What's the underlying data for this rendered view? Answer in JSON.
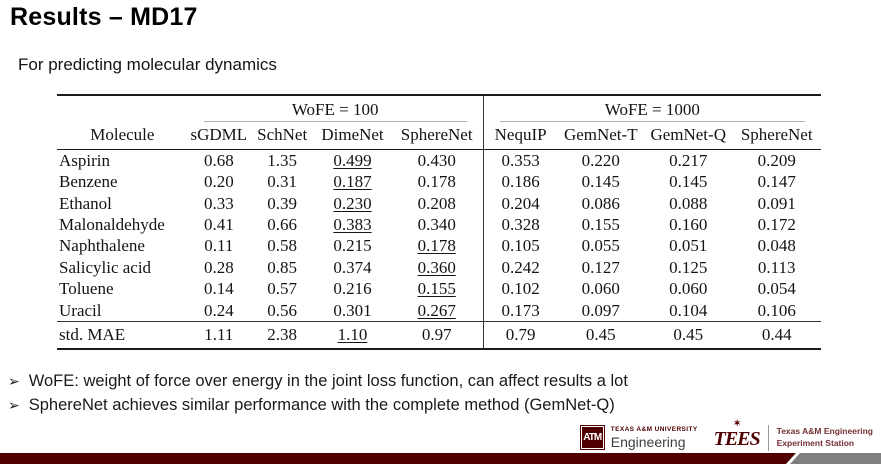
{
  "slide": {
    "title": "Results – MD17",
    "subtitle": "For predicting molecular dynamics"
  },
  "icons": {
    "bullet_arrow": "➢",
    "tees_star": "✶"
  },
  "colors": {
    "tamu_maroon": "#500000",
    "footer_bar_gray": "#7f7f7f",
    "table_rule_dark": "#1c1c1c",
    "cmidrule_gray": "#b0b0b0"
  },
  "table": {
    "corner_label": "Molecule",
    "groups": [
      {
        "label": "WoFE = 100",
        "columns": [
          {
            "label": "sGDML",
            "bold": false
          },
          {
            "label": "SchNet",
            "bold": false
          },
          {
            "label": "DimeNet",
            "bold": false
          },
          {
            "label": "SphereNet",
            "bold": true
          }
        ]
      },
      {
        "label": "WoFE = 1000",
        "columns": [
          {
            "label": "NequIP",
            "bold": false
          },
          {
            "label": "GemNet-T",
            "bold": false
          },
          {
            "label": "GemNet-Q",
            "bold": false
          },
          {
            "label": "SphereNet",
            "bold": false
          }
        ]
      }
    ],
    "rows": [
      {
        "molecule": "Aspirin",
        "cells": [
          {
            "v": "0.68"
          },
          {
            "v": "1.35"
          },
          {
            "v": "0.499",
            "style": "underline"
          },
          {
            "v": "0.430",
            "style": "bold"
          },
          {
            "v": "0.353"
          },
          {
            "v": "0.220"
          },
          {
            "v": "0.217"
          },
          {
            "v": "0.209"
          }
        ]
      },
      {
        "molecule": "Benzene",
        "cells": [
          {
            "v": "0.20"
          },
          {
            "v": "0.31"
          },
          {
            "v": "0.187",
            "style": "underline"
          },
          {
            "v": "0.178",
            "style": "bold"
          },
          {
            "v": "0.186"
          },
          {
            "v": "0.145"
          },
          {
            "v": "0.145"
          },
          {
            "v": "0.147"
          }
        ]
      },
      {
        "molecule": "Ethanol",
        "cells": [
          {
            "v": "0.33"
          },
          {
            "v": "0.39"
          },
          {
            "v": "0.230",
            "style": "underline"
          },
          {
            "v": "0.208",
            "style": "bold"
          },
          {
            "v": "0.204"
          },
          {
            "v": "0.086"
          },
          {
            "v": "0.088"
          },
          {
            "v": "0.091"
          }
        ]
      },
      {
        "molecule": "Malonaldehyde",
        "cells": [
          {
            "v": "0.41"
          },
          {
            "v": "0.66"
          },
          {
            "v": "0.383",
            "style": "underline"
          },
          {
            "v": "0.340",
            "style": "bold"
          },
          {
            "v": "0.328"
          },
          {
            "v": "0.155"
          },
          {
            "v": "0.160"
          },
          {
            "v": "0.172"
          }
        ]
      },
      {
        "molecule": "Naphthalene",
        "cells": [
          {
            "v": "0.11",
            "style": "bold"
          },
          {
            "v": "0.58"
          },
          {
            "v": "0.215"
          },
          {
            "v": "0.178",
            "style": "underline"
          },
          {
            "v": "0.105"
          },
          {
            "v": "0.055"
          },
          {
            "v": "0.051"
          },
          {
            "v": "0.048"
          }
        ]
      },
      {
        "molecule": "Salicylic acid",
        "cells": [
          {
            "v": "0.28",
            "style": "bold"
          },
          {
            "v": "0.85"
          },
          {
            "v": "0.374"
          },
          {
            "v": "0.360",
            "style": "underline"
          },
          {
            "v": "0.242"
          },
          {
            "v": "0.127"
          },
          {
            "v": "0.125"
          },
          {
            "v": "0.113"
          }
        ]
      },
      {
        "molecule": "Toluene",
        "cells": [
          {
            "v": "0.14",
            "style": "bold"
          },
          {
            "v": "0.57"
          },
          {
            "v": "0.216"
          },
          {
            "v": "0.155",
            "style": "underline"
          },
          {
            "v": "0.102"
          },
          {
            "v": "0.060"
          },
          {
            "v": "0.060"
          },
          {
            "v": "0.054"
          }
        ]
      },
      {
        "molecule": "Uracil",
        "cells": [
          {
            "v": "0.24",
            "style": "bold"
          },
          {
            "v": "0.56"
          },
          {
            "v": "0.301"
          },
          {
            "v": "0.267",
            "style": "underline"
          },
          {
            "v": "0.173"
          },
          {
            "v": "0.097"
          },
          {
            "v": "0.104"
          },
          {
            "v": "0.106"
          }
        ]
      }
    ],
    "summary_row": {
      "molecule": "std. MAE",
      "cells": [
        {
          "v": "1.11"
        },
        {
          "v": "2.38"
        },
        {
          "v": "1.10",
          "style": "underline"
        },
        {
          "v": "0.97",
          "style": "bold"
        },
        {
          "v": "0.79"
        },
        {
          "v": "0.45"
        },
        {
          "v": "0.45"
        },
        {
          "v": "0.44"
        }
      ]
    }
  },
  "bullets": [
    "WoFE: weight of force over energy in the joint loss function, can affect results a lot",
    "SphereNet achieves similar performance with the complete method (GemNet-Q)"
  ],
  "footer": {
    "tamu": {
      "monogram": "ATM",
      "university": "TEXAS A&M UNIVERSITY",
      "unit": "Engineering"
    },
    "tees": {
      "acronym": "TEES",
      "line1": "Texas A&M Engineering",
      "line2": "Experiment Station"
    }
  }
}
